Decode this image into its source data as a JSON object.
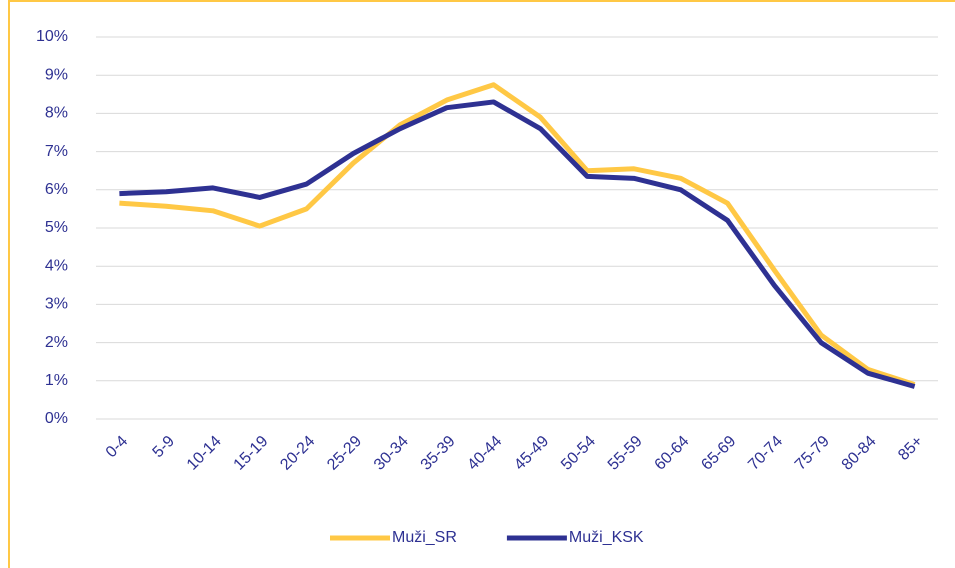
{
  "chart_data": {
    "type": "line",
    "categories": [
      "0-4",
      "5-9",
      "10-14",
      "15-19",
      "20-24",
      "25-29",
      "30-34",
      "35-39",
      "40-44",
      "45-49",
      "50-54",
      "55-59",
      "60-64",
      "65-69",
      "70-74",
      "75-79",
      "80-84",
      "85+"
    ],
    "series": [
      {
        "name": "Muži_SR",
        "color": "#ffc845",
        "values": [
          5.65,
          5.57,
          5.45,
          5.05,
          5.5,
          6.7,
          7.7,
          8.35,
          8.75,
          7.9,
          6.5,
          6.55,
          6.3,
          5.65,
          3.9,
          2.2,
          1.3,
          0.9
        ]
      },
      {
        "name": "Muži_KSK",
        "color": "#2e3192",
        "values": [
          5.9,
          5.95,
          6.05,
          5.8,
          6.15,
          6.95,
          7.6,
          8.15,
          8.3,
          7.6,
          6.35,
          6.3,
          6.0,
          5.2,
          3.5,
          2.0,
          1.2,
          0.85
        ]
      }
    ],
    "ylim": [
      0,
      10
    ],
    "yticks": [
      {
        "value": 0,
        "label": "0%"
      },
      {
        "value": 1,
        "label": "1%"
      },
      {
        "value": 2,
        "label": "2%"
      },
      {
        "value": 3,
        "label": "3%"
      },
      {
        "value": 4,
        "label": "4%"
      },
      {
        "value": 5,
        "label": "5%"
      },
      {
        "value": 6,
        "label": "6%"
      },
      {
        "value": 7,
        "label": "7%"
      },
      {
        "value": 8,
        "label": "8%"
      },
      {
        "value": 9,
        "label": "9%"
      },
      {
        "value": 10,
        "label": "10%"
      }
    ],
    "grid": true,
    "legend": "bottom"
  }
}
